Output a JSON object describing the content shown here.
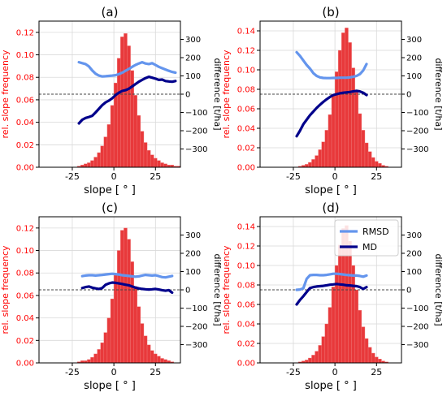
{
  "figure": {
    "legend_labels": [
      "RMSD",
      "MD"
    ]
  },
  "colors": {
    "hist": "#e8393b",
    "hist_edge": "#f07a7a",
    "rmsd": "#6495ed",
    "md": "#00008b",
    "left_axis_text": "#ff0000",
    "grid": "#d9d9d9",
    "zero_line": "#444444"
  },
  "chart_data": [
    {
      "type": "bar",
      "panel": "a",
      "title": "(a)",
      "xlabel": "slope [$^\\circ$]",
      "ylabel_left": "rel. slope frequency",
      "ylabel_right": "difference [t/ha]",
      "xlim": [
        -45,
        40
      ],
      "ylim_left": [
        0,
        0.13
      ],
      "ylim_right": [
        -400,
        400
      ],
      "xticks": [
        -25,
        0,
        25
      ],
      "yticks_left": [
        "0.00",
        "0.02",
        "0.04",
        "0.06",
        "0.08",
        "0.10",
        "0.12"
      ],
      "yticks_right": [
        -300,
        -200,
        -100,
        0,
        100,
        200,
        300
      ],
      "hist": {
        "bin_start": -22,
        "bin_width": 2,
        "values": [
          0.001,
          0.002,
          0.003,
          0.004,
          0.006,
          0.009,
          0.013,
          0.019,
          0.027,
          0.038,
          0.055,
          0.075,
          0.097,
          0.116,
          0.119,
          0.108,
          0.086,
          0.064,
          0.046,
          0.032,
          0.022,
          0.015,
          0.011,
          0.008,
          0.006,
          0.004,
          0.003,
          0.002,
          0.002,
          0.001,
          0.001
        ]
      },
      "series": [
        {
          "name": "RMSD",
          "x": [
            -21,
            -19,
            -17,
            -15,
            -13,
            -11,
            -9,
            -7,
            -5,
            -3,
            -1,
            1,
            3,
            5,
            7,
            9,
            11,
            13,
            15,
            17,
            19,
            21,
            23,
            25,
            27,
            29,
            31,
            33,
            35,
            37
          ],
          "y": [
            175,
            170,
            165,
            152,
            130,
            112,
            102,
            97,
            98,
            100,
            102,
            104,
            110,
            118,
            128,
            138,
            150,
            160,
            168,
            175,
            168,
            165,
            170,
            160,
            150,
            142,
            135,
            128,
            122,
            118
          ]
        },
        {
          "name": "MD",
          "x": [
            -21,
            -19,
            -17,
            -15,
            -13,
            -11,
            -9,
            -7,
            -5,
            -3,
            -1,
            1,
            3,
            5,
            7,
            9,
            11,
            13,
            15,
            17,
            19,
            21,
            23,
            25,
            27,
            29,
            31,
            33,
            35,
            37
          ],
          "y": [
            -160,
            -140,
            -130,
            -125,
            -118,
            -100,
            -80,
            -60,
            -45,
            -35,
            -22,
            -5,
            8,
            18,
            22,
            30,
            42,
            55,
            68,
            78,
            88,
            95,
            90,
            85,
            78,
            80,
            72,
            70,
            68,
            72
          ]
        }
      ]
    },
    {
      "type": "bar",
      "panel": "b",
      "title": "(b)",
      "xlabel": "slope [$^\\circ$]",
      "ylabel_left": "rel. slope frequency",
      "ylabel_right": "difference [t/ha]",
      "xlim": [
        -45,
        40
      ],
      "ylim_left": [
        0,
        0.15
      ],
      "ylim_right": [
        -400,
        400
      ],
      "xticks": [
        -25,
        0,
        25
      ],
      "yticks_left": [
        "0.00",
        "0.02",
        "0.04",
        "0.06",
        "0.08",
        "0.10",
        "0.12",
        "0.14"
      ],
      "yticks_right": [
        -300,
        -200,
        -100,
        0,
        100,
        200,
        300
      ],
      "hist": {
        "bin_start": -22,
        "bin_width": 2,
        "values": [
          0.001,
          0.002,
          0.003,
          0.005,
          0.008,
          0.012,
          0.018,
          0.026,
          0.038,
          0.054,
          0.075,
          0.098,
          0.12,
          0.138,
          0.143,
          0.128,
          0.102,
          0.077,
          0.055,
          0.038,
          0.025,
          0.016,
          0.01,
          0.006,
          0.004,
          0.002,
          0.001
        ]
      },
      "series": [
        {
          "name": "RMSD",
          "x": [
            -23,
            -21,
            -19,
            -17,
            -15,
            -13,
            -11,
            -9,
            -7,
            -5,
            -3,
            -1,
            1,
            3,
            5,
            7,
            9,
            11,
            13,
            15,
            17,
            19
          ],
          "y": [
            230,
            210,
            185,
            160,
            140,
            115,
            100,
            92,
            89,
            88,
            88,
            89,
            89,
            90,
            90,
            90,
            92,
            95,
            100,
            110,
            130,
            165
          ]
        },
        {
          "name": "MD",
          "x": [
            -23,
            -21,
            -19,
            -17,
            -15,
            -13,
            -11,
            -9,
            -7,
            -5,
            -3,
            -1,
            1,
            3,
            5,
            7,
            9,
            11,
            13,
            15,
            17,
            19
          ],
          "y": [
            -230,
            -200,
            -165,
            -140,
            -115,
            -95,
            -75,
            -58,
            -42,
            -28,
            -15,
            -5,
            0,
            5,
            8,
            10,
            12,
            15,
            18,
            15,
            8,
            -5
          ]
        }
      ]
    },
    {
      "type": "bar",
      "panel": "c",
      "title": "(c)",
      "xlabel": "slope [$^\\circ$]",
      "ylabel_left": "rel. slope frequency",
      "ylabel_right": "difference [t/ha]",
      "xlim": [
        -45,
        40
      ],
      "ylim_left": [
        0,
        0.13
      ],
      "ylim_right": [
        -400,
        400
      ],
      "xticks": [
        -25,
        0,
        25
      ],
      "yticks_left": [
        "0.00",
        "0.02",
        "0.04",
        "0.06",
        "0.08",
        "0.10",
        "0.12"
      ],
      "yticks_right": [
        -300,
        -200,
        -100,
        0,
        100,
        200,
        300
      ],
      "hist": {
        "bin_start": -22,
        "bin_width": 2,
        "values": [
          0.001,
          0.002,
          0.002,
          0.003,
          0.005,
          0.008,
          0.012,
          0.018,
          0.027,
          0.04,
          0.057,
          0.078,
          0.1,
          0.118,
          0.12,
          0.11,
          0.09,
          0.068,
          0.05,
          0.035,
          0.024,
          0.016,
          0.011,
          0.008,
          0.006,
          0.004,
          0.003,
          0.002,
          0.001
        ]
      },
      "series": [
        {
          "name": "RMSD",
          "x": [
            -19,
            -17,
            -15,
            -13,
            -11,
            -9,
            -7,
            -5,
            -3,
            -1,
            1,
            3,
            5,
            7,
            9,
            11,
            13,
            15,
            17,
            19,
            21,
            23,
            25,
            27,
            29,
            31,
            33,
            35
          ],
          "y": [
            75,
            78,
            80,
            80,
            78,
            80,
            82,
            84,
            86,
            88,
            86,
            84,
            80,
            78,
            76,
            74,
            72,
            74,
            78,
            82,
            80,
            78,
            80,
            75,
            70,
            68,
            72,
            76
          ]
        },
        {
          "name": "MD",
          "x": [
            -19,
            -17,
            -15,
            -13,
            -11,
            -9,
            -7,
            -5,
            -3,
            -1,
            1,
            3,
            5,
            7,
            9,
            11,
            13,
            15,
            17,
            19,
            21,
            23,
            25,
            27,
            29,
            31,
            33,
            35
          ],
          "y": [
            10,
            15,
            18,
            12,
            8,
            5,
            10,
            28,
            35,
            40,
            38,
            35,
            32,
            28,
            25,
            18,
            12,
            8,
            5,
            3,
            2,
            3,
            5,
            2,
            -2,
            -5,
            -2,
            -15
          ]
        }
      ]
    },
    {
      "type": "bar",
      "panel": "d",
      "title": "(d)",
      "xlabel": "slope [$^\\circ$]",
      "ylabel_left": "rel. slope frequency",
      "ylabel_right": "difference [t/ha]",
      "xlim": [
        -45,
        40
      ],
      "ylim_left": [
        0,
        0.15
      ],
      "ylim_right": [
        -400,
        400
      ],
      "xticks": [
        -25,
        0,
        25
      ],
      "yticks_left": [
        "0.00",
        "0.02",
        "0.04",
        "0.06",
        "0.08",
        "0.10",
        "0.12",
        "0.14"
      ],
      "yticks_right": [
        -300,
        -200,
        -100,
        0,
        100,
        200,
        300
      ],
      "legend": "upper-right",
      "hist": {
        "bin_start": -22,
        "bin_width": 2,
        "values": [
          0.001,
          0.002,
          0.003,
          0.005,
          0.008,
          0.012,
          0.018,
          0.027,
          0.04,
          0.057,
          0.078,
          0.1,
          0.121,
          0.138,
          0.141,
          0.125,
          0.1,
          0.075,
          0.054,
          0.037,
          0.025,
          0.016,
          0.01,
          0.006,
          0.004,
          0.002,
          0.001
        ]
      },
      "series": [
        {
          "name": "RMSD",
          "x": [
            -23,
            -21,
            -19,
            -17,
            -15,
            -13,
            -11,
            -9,
            -7,
            -5,
            -3,
            -1,
            1,
            3,
            5,
            7,
            9,
            11,
            13,
            15,
            17,
            19
          ],
          "y": [
            0,
            2,
            8,
            60,
            80,
            82,
            82,
            80,
            80,
            82,
            85,
            88,
            88,
            86,
            84,
            82,
            80,
            78,
            78,
            76,
            72,
            78
          ]
        },
        {
          "name": "MD",
          "x": [
            -23,
            -21,
            -19,
            -17,
            -15,
            -13,
            -11,
            -9,
            -7,
            -5,
            -3,
            -1,
            1,
            3,
            5,
            7,
            9,
            11,
            13,
            15,
            17,
            19
          ],
          "y": [
            -80,
            -55,
            -35,
            -12,
            10,
            15,
            18,
            20,
            22,
            25,
            28,
            30,
            32,
            30,
            28,
            25,
            24,
            22,
            20,
            15,
            5,
            15
          ]
        }
      ]
    }
  ]
}
